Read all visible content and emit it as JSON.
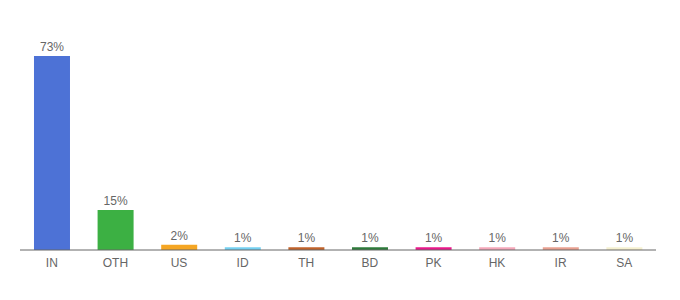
{
  "chart_data": {
    "type": "bar",
    "categories": [
      "IN",
      "OTH",
      "US",
      "ID",
      "TH",
      "BD",
      "PK",
      "HK",
      "IR",
      "SA"
    ],
    "values": [
      73,
      15,
      2,
      1,
      1,
      1,
      1,
      1,
      1,
      1
    ],
    "value_labels": [
      "73%",
      "15%",
      "2%",
      "1%",
      "1%",
      "1%",
      "1%",
      "1%",
      "1%",
      "1%"
    ],
    "colors": [
      "#4d72d6",
      "#3cb043",
      "#f5a623",
      "#74d0f1",
      "#c0622a",
      "#2d7a3a",
      "#e8188a",
      "#f4a7b9",
      "#e8a090",
      "#f5f0d0"
    ],
    "ylim": [
      0,
      82
    ],
    "data_labels": true,
    "tick_labels": "x",
    "grid": false
  }
}
